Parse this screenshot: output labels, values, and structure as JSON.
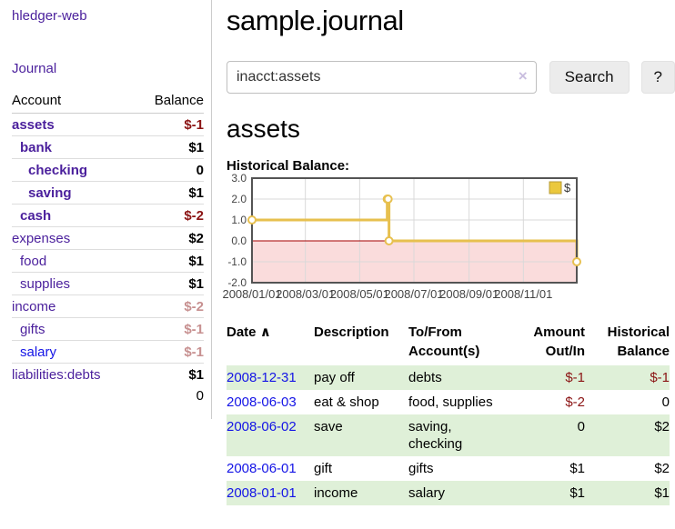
{
  "app_title": "hledger-web",
  "colors": {
    "purple_link": "#4a1f9c",
    "blue_link": "#1414e6",
    "negative": "#8b1414",
    "negative_faded": "#c79090",
    "row_green": "#dff0d8"
  },
  "sidebar": {
    "journal_link": "Journal",
    "columns": {
      "account": "Account",
      "balance": "Balance"
    },
    "accounts": [
      {
        "name": "assets",
        "balance": "$-1",
        "indent": 0,
        "match": true,
        "link": "purple",
        "bal": "neg"
      },
      {
        "name": "bank",
        "balance": "$1",
        "indent": 1,
        "match": true,
        "link": "purple",
        "bal": "pos"
      },
      {
        "name": "checking",
        "balance": "0",
        "indent": 2,
        "match": true,
        "link": "purple",
        "bal": "pos"
      },
      {
        "name": "saving",
        "balance": "$1",
        "indent": 2,
        "match": true,
        "link": "purple",
        "bal": "pos"
      },
      {
        "name": "cash",
        "balance": "$-2",
        "indent": 1,
        "match": true,
        "link": "purple",
        "bal": "neg"
      },
      {
        "name": "expenses",
        "balance": "$2",
        "indent": 0,
        "match": false,
        "link": "purple",
        "bal": "pos"
      },
      {
        "name": "food",
        "balance": "$1",
        "indent": 1,
        "match": false,
        "link": "purple",
        "bal": "pos"
      },
      {
        "name": "supplies",
        "balance": "$1",
        "indent": 1,
        "match": false,
        "link": "purple",
        "bal": "pos"
      },
      {
        "name": "income",
        "balance": "$-2",
        "indent": 0,
        "match": false,
        "link": "purple",
        "bal": "negfaded"
      },
      {
        "name": "gifts",
        "balance": "$-1",
        "indent": 1,
        "match": false,
        "link": "purple",
        "bal": "negfaded"
      },
      {
        "name": "salary",
        "balance": "$-1",
        "indent": 1,
        "match": false,
        "link": "blue",
        "bal": "negfaded"
      },
      {
        "name": "liabilities:debts",
        "balance": "$1",
        "indent": 0,
        "match": false,
        "link": "purple",
        "bal": "pos"
      }
    ],
    "total": "0"
  },
  "header": {
    "title": "sample.journal"
  },
  "search": {
    "value": "inacct:assets",
    "clear_icon": "×",
    "search_button": "Search",
    "help_button": "?"
  },
  "account_page": {
    "title": "assets",
    "section_label": "Historical Balance:"
  },
  "chart_data": {
    "type": "line",
    "style": "step",
    "title": "Historical Balance",
    "x_range": [
      "2008-01-01",
      "2008-12-31"
    ],
    "ylim": [
      -2,
      3
    ],
    "series": [
      {
        "name": "$",
        "points": [
          [
            "2008-01-01",
            1.0
          ],
          [
            "2008-06-01",
            2.0
          ],
          [
            "2008-06-02",
            2.0
          ],
          [
            "2008-06-03",
            0.0
          ],
          [
            "2008-12-31",
            -1.0
          ]
        ]
      }
    ],
    "x_ticks": [
      {
        "date": "2008-01-01",
        "label": "2008/01/01"
      },
      {
        "date": "2008-03-01",
        "label": "2008/03/01"
      },
      {
        "date": "2008-05-01",
        "label": "2008/05/01"
      },
      {
        "date": "2008-07-01",
        "label": "2008/07/01"
      },
      {
        "date": "2008-09-01",
        "label": "2008/09/01"
      },
      {
        "date": "2008-11-01",
        "label": "2008/11/01"
      }
    ],
    "y_ticks": [
      {
        "value": 3,
        "label": "3.0"
      },
      {
        "value": 2,
        "label": "2.0"
      },
      {
        "value": 1,
        "label": "1.0"
      },
      {
        "value": 0,
        "label": "0.0"
      },
      {
        "value": -1,
        "label": "-1.0"
      },
      {
        "value": -2,
        "label": "-2.0"
      }
    ],
    "legend": {
      "label": "$",
      "position": "top-right"
    },
    "grid": true,
    "colors": {
      "line": "#E7C04F",
      "marker_fill": "#FFFFFF",
      "negative_region": "#FADCDC",
      "zero_line": "#A40000",
      "plot_border": "#545454",
      "gridline": "#D9D9D9",
      "legend_fill": "#EBC83D",
      "legend_border": "#B79B37",
      "axis_text": "#444444"
    }
  },
  "register": {
    "sort_icon": "∧",
    "columns": {
      "date": "Date",
      "description": "Description",
      "tofrom_line1": "To/From",
      "tofrom_line2": "Account(s)",
      "amount_line1": "Amount",
      "amount_line2": "Out/In",
      "balance_line1": "Historical",
      "balance_line2": "Balance"
    },
    "rows": [
      {
        "date": "2008-12-31",
        "description": "pay off",
        "accounts": "debts",
        "amount": "$-1",
        "amount_neg": true,
        "balance": "$-1",
        "balance_neg": true
      },
      {
        "date": "2008-06-03",
        "description": "eat & shop",
        "accounts": "food, supplies",
        "amount": "$-2",
        "amount_neg": true,
        "balance": "0",
        "balance_neg": false
      },
      {
        "date": "2008-06-02",
        "description": "save",
        "accounts": "saving, checking",
        "amount": "0",
        "amount_neg": false,
        "balance": "$2",
        "balance_neg": false
      },
      {
        "date": "2008-06-01",
        "description": "gift",
        "accounts": "gifts",
        "amount": "$1",
        "amount_neg": false,
        "balance": "$2",
        "balance_neg": false
      },
      {
        "date": "2008-01-01",
        "description": "income",
        "accounts": "salary",
        "amount": "$1",
        "amount_neg": false,
        "balance": "$1",
        "balance_neg": false
      }
    ]
  }
}
